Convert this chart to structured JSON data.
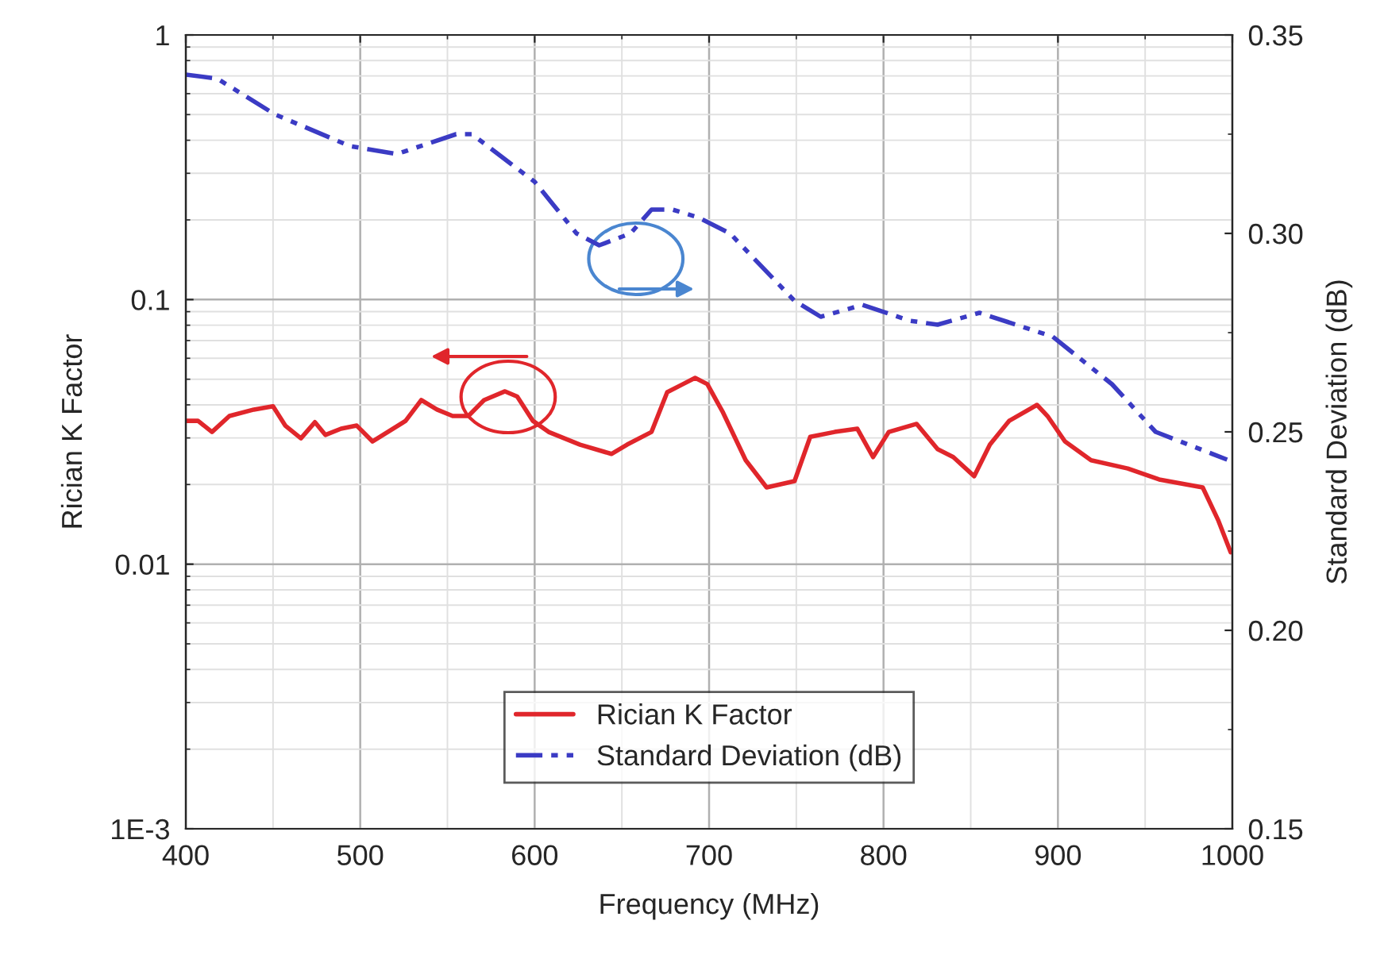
{
  "chart_data": {
    "type": "line",
    "xlabel": "Frequency (MHz)",
    "ylabel": "Rician K Factor",
    "y2label": "Standard Deviation (dB)",
    "xlim": [
      400,
      1000
    ],
    "xticks": [
      400,
      500,
      600,
      700,
      800,
      900,
      1000
    ],
    "ylim": [
      0.001,
      1
    ],
    "yticks": [
      {
        "value": 0.001,
        "label": "1E-3"
      },
      0.01,
      0.1,
      1
    ],
    "log": "y",
    "y2lim": [
      0.15,
      0.35
    ],
    "y2ticks": [
      {
        "value": 0.15,
        "label": "0.15"
      },
      {
        "value": 0.2,
        "label": "0.20"
      },
      {
        "value": 0.25,
        "label": "0.25"
      },
      {
        "value": 0.3,
        "label": "0.30"
      },
      {
        "value": 0.35,
        "label": "0.35"
      }
    ],
    "grid": true,
    "legend": "bottom",
    "series": [
      {
        "name": "Rician K Factor",
        "color": "#e0262b",
        "line_style": "solid",
        "x": [
          400,
          407,
          415,
          425,
          439,
          450,
          457,
          466,
          474,
          480,
          489,
          498,
          507,
          526,
          535,
          544,
          553,
          562,
          571,
          583,
          590,
          599,
          608,
          626,
          644,
          653,
          667,
          676,
          685,
          692,
          699,
          708,
          721,
          733,
          749,
          758,
          772,
          785,
          794,
          803,
          819,
          831,
          840,
          852,
          861,
          872,
          888,
          894,
          904,
          919,
          940,
          958,
          983,
          992,
          999
        ],
        "values": [
          0.0348,
          0.0348,
          0.0316,
          0.0363,
          0.0384,
          0.0395,
          0.0334,
          0.0299,
          0.0344,
          0.0308,
          0.0325,
          0.0334,
          0.0291,
          0.0348,
          0.0417,
          0.0384,
          0.0363,
          0.0363,
          0.0417,
          0.045,
          0.043,
          0.0348,
          0.0316,
          0.0283,
          0.0261,
          0.0283,
          0.0316,
          0.0447,
          0.0479,
          0.0506,
          0.0479,
          0.0374,
          0.0247,
          0.0195,
          0.0206,
          0.0303,
          0.0316,
          0.0325,
          0.0254,
          0.0316,
          0.0339,
          0.0272,
          0.0254,
          0.0215,
          0.0283,
          0.0348,
          0.04,
          0.0363,
          0.0291,
          0.0247,
          0.023,
          0.0209,
          0.0195,
          0.0146,
          0.0111
        ]
      },
      {
        "name": "Standard Deviation (dB)",
        "color": "#3b3bc4",
        "line_style": "dashdotdot",
        "axis": "y2",
        "x": [
          400,
          418,
          451,
          494,
          521,
          555,
          564,
          600,
          624,
          637,
          655,
          667,
          679,
          694,
          712,
          749,
          764,
          788,
          815,
          831,
          855,
          897,
          931,
          956,
          997
        ],
        "values": [
          0.34,
          0.339,
          0.33,
          0.322,
          0.32,
          0.325,
          0.325,
          0.313,
          0.3,
          0.297,
          0.3,
          0.306,
          0.306,
          0.304,
          0.3,
          0.283,
          0.279,
          0.282,
          0.278,
          0.277,
          0.28,
          0.274,
          0.262,
          0.25,
          0.243
        ]
      }
    ]
  }
}
